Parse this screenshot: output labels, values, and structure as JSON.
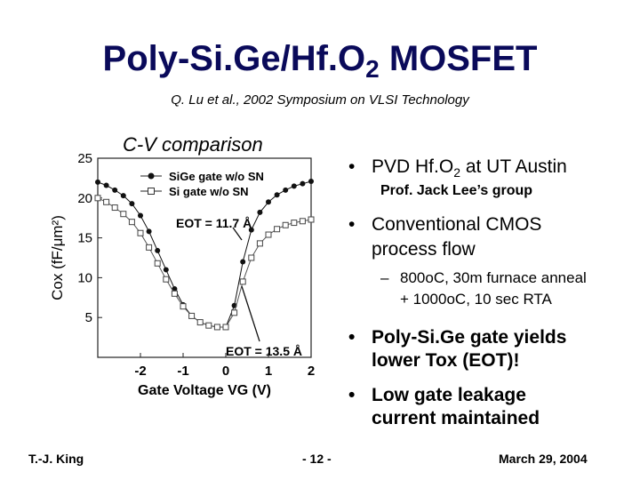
{
  "slide": {
    "title_main": "Poly-Si.Ge/Hf.O",
    "title_sub": "2",
    "title_end": " MOSFET",
    "citation": "Q. Lu et al., 2002 Symposium on VLSI Technology",
    "plot_heading": "C-V comparison"
  },
  "bullets": {
    "b1_pre": "PVD Hf.O",
    "b1_sub": "2",
    "b1_post": " at UT Austin",
    "b1_note": "Prof. Jack Lee’s group",
    "b2_line1": "Conventional CMOS",
    "b2_line2": "process flow",
    "b2_sub_dash": "–",
    "b2_sub_line1": "800oC, 30m furnace anneal",
    "b2_sub_line2": "+ 1000oC, 10 sec RTA",
    "b3_line1": "Poly-Si.Ge gate yields",
    "b3_line2": "lower Tox (EOT)!",
    "b4_line1": "Low gate leakage",
    "b4_line2": "current maintained",
    "bullet_symbol": "•"
  },
  "footer": {
    "author": "T.-J. King",
    "page": "- 12 -",
    "date": "March 29, 2004"
  },
  "chart_data": {
    "type": "line",
    "xlabel": "Gate Voltage VG (V)",
    "ylabel": "Cox (fF/μm²)",
    "xlim": [
      -3,
      2
    ],
    "ylim": [
      0,
      25
    ],
    "x_ticks": [
      "-2",
      "-1",
      "0",
      "1",
      "2"
    ],
    "y_ticks": [
      "5",
      "10",
      "15",
      "20",
      "25"
    ],
    "y_tick_values": [
      5,
      10,
      15,
      20,
      25
    ],
    "x_tick_values": [
      -2,
      -1,
      0,
      1,
      2
    ],
    "legend": [
      "SiGe gate w/o SN",
      "Si gate w/o SN"
    ],
    "series": [
      {
        "name": "SiGe gate w/o SN",
        "marker": "filled-circle",
        "x": [
          -3.0,
          -2.8,
          -2.6,
          -2.4,
          -2.2,
          -2.0,
          -1.8,
          -1.6,
          -1.4,
          -1.2,
          -1.0,
          -0.8,
          -0.6,
          -0.4,
          -0.2,
          0.0,
          0.2,
          0.4,
          0.6,
          0.8,
          1.0,
          1.2,
          1.4,
          1.6,
          1.8,
          2.0
        ],
        "y": [
          22.0,
          21.6,
          21.0,
          20.3,
          19.3,
          17.8,
          15.8,
          13.4,
          11.0,
          8.6,
          6.6,
          5.2,
          4.4,
          4.0,
          3.8,
          3.8,
          6.5,
          12.0,
          16.0,
          18.2,
          19.5,
          20.4,
          21.0,
          21.5,
          21.8,
          22.1
        ]
      },
      {
        "name": "Si gate w/o SN",
        "marker": "open-square",
        "x": [
          -3.0,
          -2.8,
          -2.6,
          -2.4,
          -2.2,
          -2.0,
          -1.8,
          -1.6,
          -1.4,
          -1.2,
          -1.0,
          -0.8,
          -0.6,
          -0.4,
          -0.2,
          0.0,
          0.2,
          0.4,
          0.6,
          0.8,
          1.0,
          1.2,
          1.4,
          1.6,
          1.8,
          2.0
        ],
        "y": [
          20.0,
          19.5,
          18.8,
          18.0,
          17.0,
          15.6,
          13.8,
          11.8,
          9.8,
          8.0,
          6.4,
          5.2,
          4.4,
          4.0,
          3.8,
          3.8,
          5.6,
          9.5,
          12.5,
          14.3,
          15.4,
          16.1,
          16.6,
          16.9,
          17.1,
          17.3
        ]
      }
    ],
    "annotations": [
      "EOT = 11.7 Å",
      "EOT = 13.5 Å"
    ]
  }
}
